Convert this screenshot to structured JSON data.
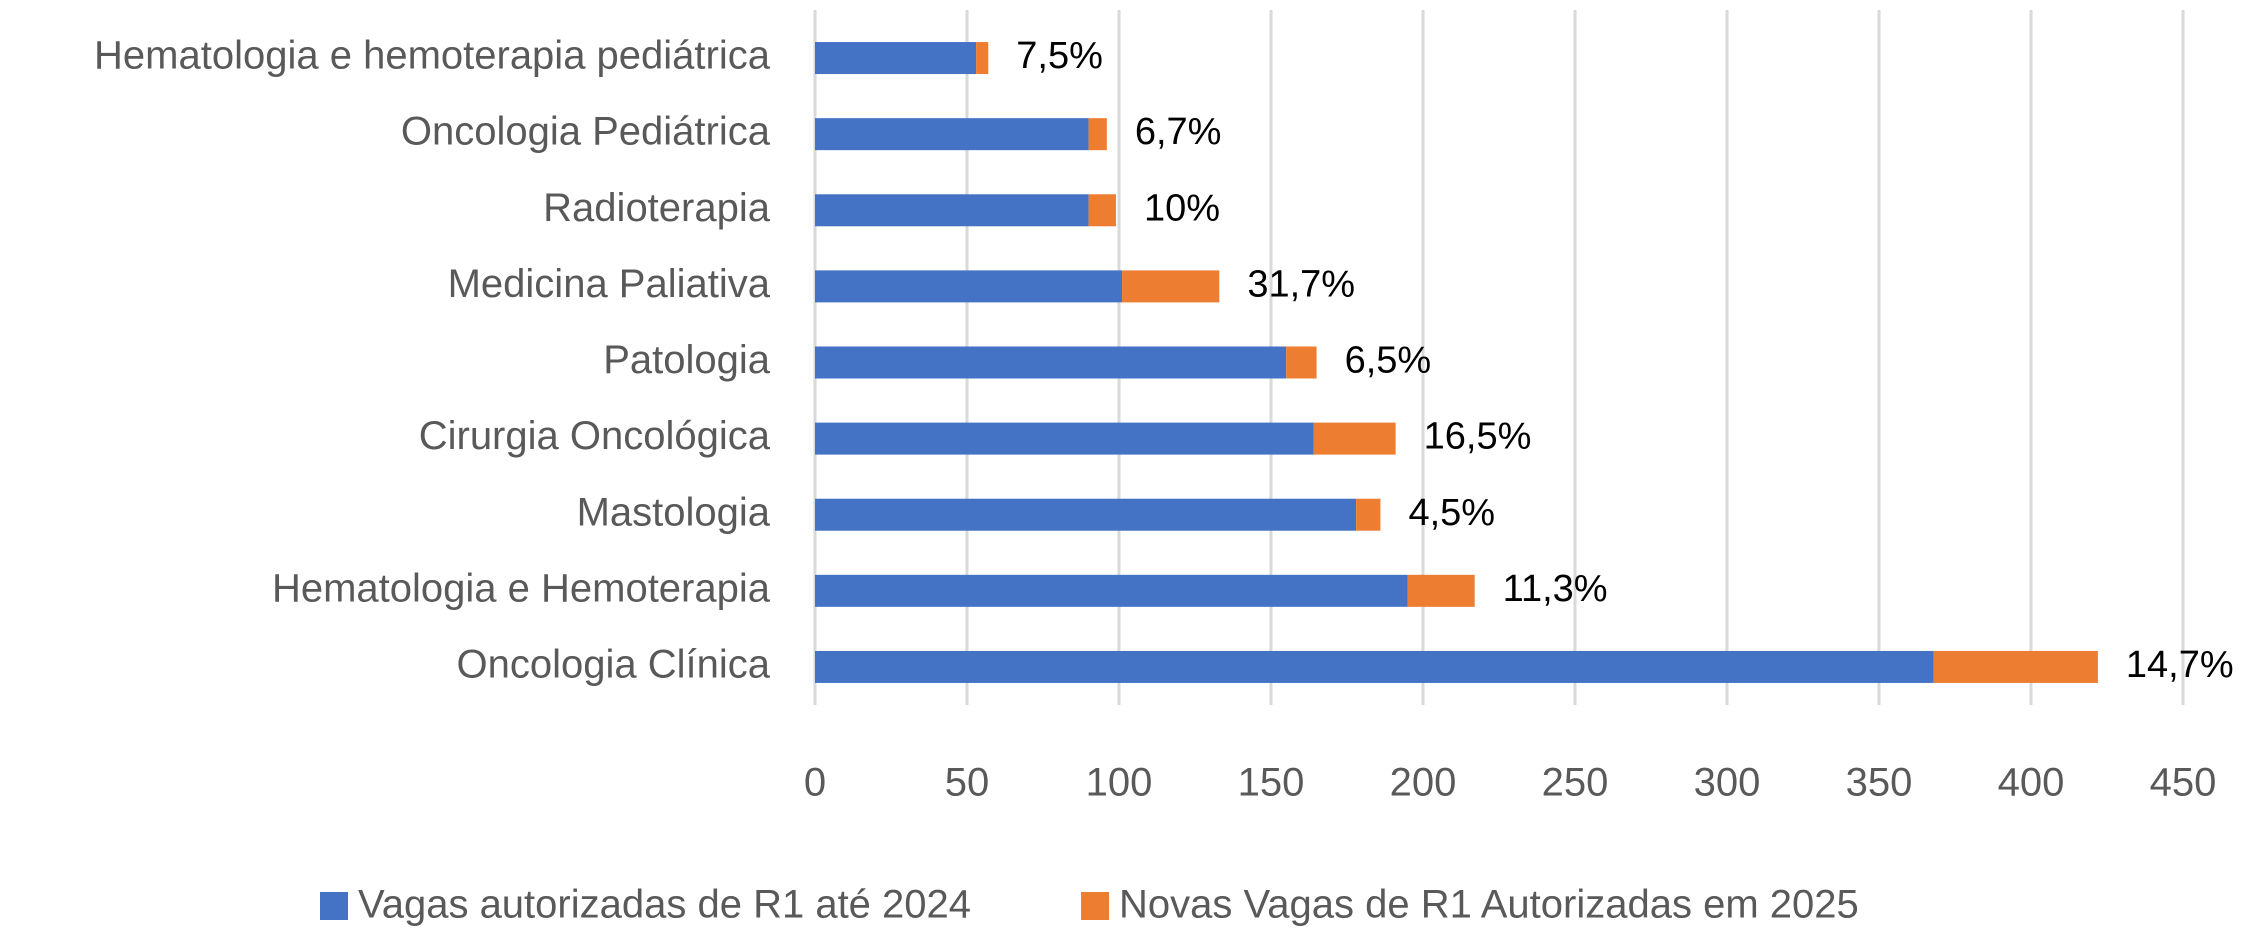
{
  "chart_data": {
    "type": "bar",
    "orientation": "horizontal",
    "stacked": true,
    "categories": [
      "Hematologia e hemoterapia pediátrica",
      "Oncologia Pediátrica",
      "Radioterapia",
      "Medicina Paliativa",
      "Patologia",
      "Cirurgia Oncológica",
      "Mastologia",
      "Hematologia e Hemoterapia",
      "Oncologia Clínica"
    ],
    "series": [
      {
        "name": "Vagas autorizadas de R1 até 2024",
        "color": "#4472c4",
        "values": [
          53,
          90,
          90,
          101,
          155,
          164,
          178,
          195,
          368
        ]
      },
      {
        "name": "Novas Vagas de R1 Autorizadas em 2025",
        "color": "#ed7d31",
        "values": [
          4,
          6,
          9,
          32,
          10,
          27,
          8,
          22,
          54
        ]
      }
    ],
    "annotations": {
      "values": [
        7.5,
        6.7,
        10,
        31.7,
        6.5,
        16.5,
        4.5,
        11.3,
        14.7
      ],
      "value_labels": [
        "7,5%",
        "6,7%",
        "10%",
        "31,7%",
        "6,5%",
        "16,5%",
        "4,5%",
        "11,3%",
        "14,7%"
      ]
    },
    "xlim": [
      0,
      450
    ],
    "xticks": [
      0,
      50,
      100,
      150,
      200,
      250,
      300,
      350,
      400,
      450
    ],
    "grid": true,
    "legend": "bottom"
  }
}
